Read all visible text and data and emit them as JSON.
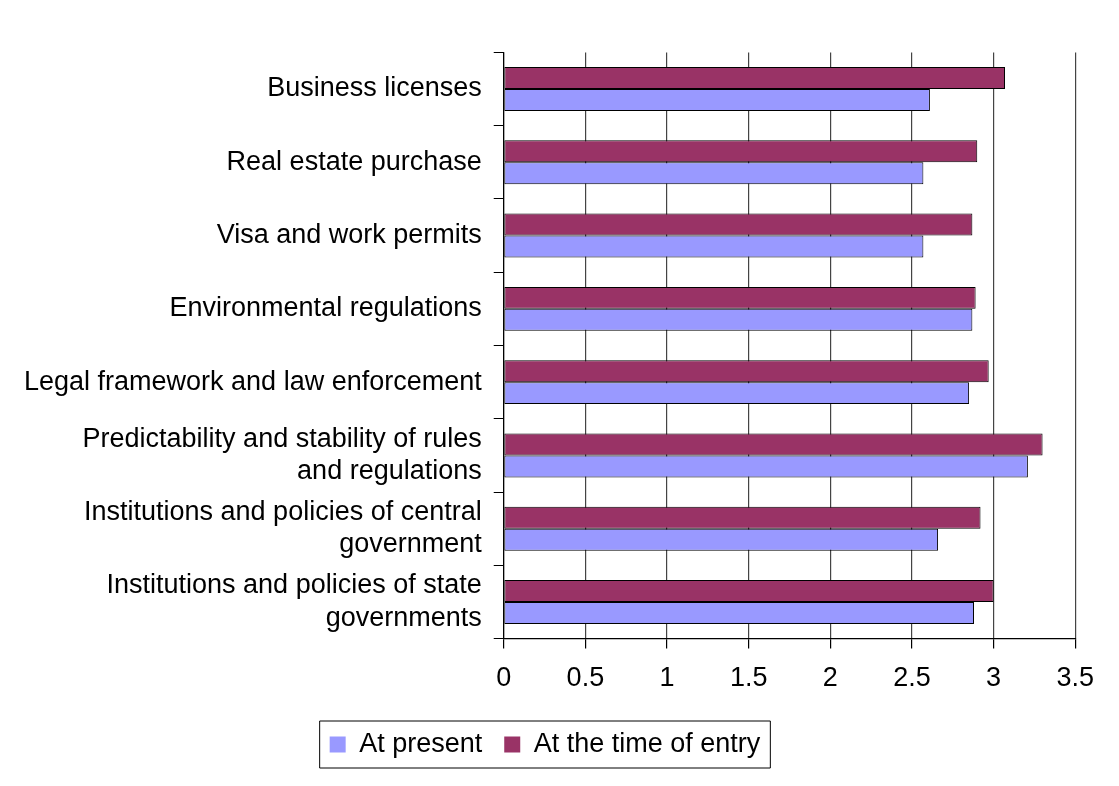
{
  "chart_data": {
    "type": "bar",
    "orientation": "horizontal",
    "categories": [
      "Business licenses",
      "Real estate purchase",
      "Visa and work permits",
      "Environmental regulations",
      "Legal framework and law enforcement",
      "Predictability and stability of rules and regulations",
      "Institutions and policies of central government",
      "Institutions and policies of state governments"
    ],
    "series": [
      {
        "name": "At the time of entry",
        "color": "#993366",
        "values": [
          3.07,
          2.9,
          2.87,
          2.89,
          2.97,
          3.3,
          2.92,
          3.0
        ]
      },
      {
        "name": "At present",
        "color": "#9999ff",
        "values": [
          2.61,
          2.57,
          2.57,
          2.87,
          2.85,
          3.21,
          2.66,
          2.88
        ]
      }
    ],
    "xlim": [
      0,
      3.5
    ],
    "xticks": [
      0,
      0.5,
      1,
      1.5,
      2,
      2.5,
      3,
      3.5
    ],
    "grid": "x",
    "legend": "bottom"
  }
}
